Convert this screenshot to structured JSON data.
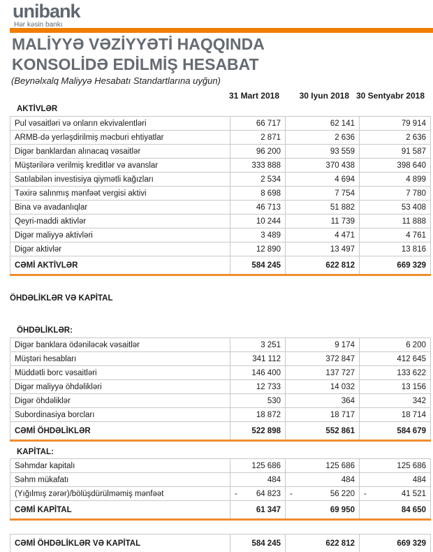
{
  "logo": {
    "brand": "unibank",
    "tagline": "Hər kəsin bankı"
  },
  "accent_color": "#f07d00",
  "title_line1": "MALİYYƏ VƏZİYYƏTİ HAQQINDA",
  "title_line2": "KONSOLİDƏ EDİLMİŞ HESABAT",
  "subtitle": "(Beynəlxalq Maliyyə Hesabatı Standartlarına uyğun)",
  "columns": [
    "31 Mart 2018",
    "30 Iyun 2018",
    "30 Sentyabr 2018"
  ],
  "assets": {
    "heading": "AKTİVLƏR",
    "rows": [
      {
        "label": "Pul vəsaitləri və onların ekvivalentləri",
        "values": [
          "66 717",
          "62 141",
          "79 914"
        ]
      },
      {
        "label": "ARMB-də yerləşdirilmiş məcburi ehtiyatlar",
        "values": [
          "2 871",
          "2 636",
          "2 636"
        ]
      },
      {
        "label": "Digər banklardan alınacaq vəsaitlər",
        "values": [
          "96 200",
          "93 559",
          "91 587"
        ]
      },
      {
        "label": "Müştərilərə verilmiş kreditlər və avanslar",
        "values": [
          "333 888",
          "370 438",
          "398 640"
        ]
      },
      {
        "label": "Satılabilən investisiya qiymətli kağızları",
        "values": [
          "2 534",
          "4 694",
          "4 899"
        ]
      },
      {
        "label": "Təxirə salınmış mənfəət vergisi aktivi",
        "values": [
          "8 698",
          "7 754",
          "7 780"
        ]
      },
      {
        "label": "Bina və avadanlıqlar",
        "values": [
          "46 713",
          "51 882",
          "53 408"
        ]
      },
      {
        "label": "Qeyri-maddi aktivlər",
        "values": [
          "10 244",
          "11 739",
          "11 888"
        ]
      },
      {
        "label": "Digər maliyyə aktivləri",
        "values": [
          "3 489",
          "4 471",
          "4 761"
        ]
      },
      {
        "label": "Digər aktivlər",
        "values": [
          "12 890",
          "13 497",
          "13 816"
        ]
      }
    ],
    "total": {
      "label": "CƏMİ AKTİVLƏR",
      "values": [
        "584 245",
        "622 812",
        "669 329"
      ]
    }
  },
  "liabilities_and_equity_heading": "ÖHDƏLİKLƏR VƏ KAPİTAL",
  "liabilities": {
    "heading": "ÖHDƏLİKLƏR:",
    "rows": [
      {
        "label": "Digər banklara ödəniləcək vəsaitlər",
        "values": [
          "3 251",
          "9 174",
          "6 200"
        ]
      },
      {
        "label": "Müştəri hesabları",
        "values": [
          "341 112",
          "372 847",
          "412 645"
        ]
      },
      {
        "label": "Müddətli borc vəsaitləri",
        "values": [
          "146 400",
          "137 727",
          "133 622"
        ]
      },
      {
        "label": "Digər maliyyə öhdəlikləri",
        "values": [
          "12 733",
          "14 032",
          "13 156"
        ]
      },
      {
        "label": "Digər öhdəliklər",
        "values": [
          "530",
          "364",
          "342"
        ]
      },
      {
        "label": "Subordinasiya borcları",
        "values": [
          "18 872",
          "18 717",
          "18 714"
        ]
      }
    ],
    "total": {
      "label": "CƏMİ ÖHDƏLİKLƏR",
      "values": [
        "522 898",
        "552 861",
        "584 679"
      ]
    }
  },
  "equity": {
    "heading": "KAPİTAL:",
    "rows": [
      {
        "label": "Səhmdar kapitalı",
        "values": [
          "125 686",
          "125 686",
          "125 686"
        ]
      },
      {
        "label": "Səhm mükafatı",
        "values": [
          "484",
          "484",
          "484"
        ]
      },
      {
        "label": "(Yığılmış zərər)/bölüşdürülməmiş mənfəət",
        "neg_sign": "-",
        "values": [
          "64 823",
          "56 220",
          "41 521"
        ]
      }
    ],
    "total": {
      "label": "CƏMİ KAPİTAL",
      "values": [
        "61 347",
        "69 950",
        "84 650"
      ]
    }
  },
  "grand_total": {
    "label": "CƏMİ ÖHDƏLİKLƏR VƏ KAPİTAL",
    "values": [
      "584 245",
      "622 812",
      "669 329"
    ]
  }
}
